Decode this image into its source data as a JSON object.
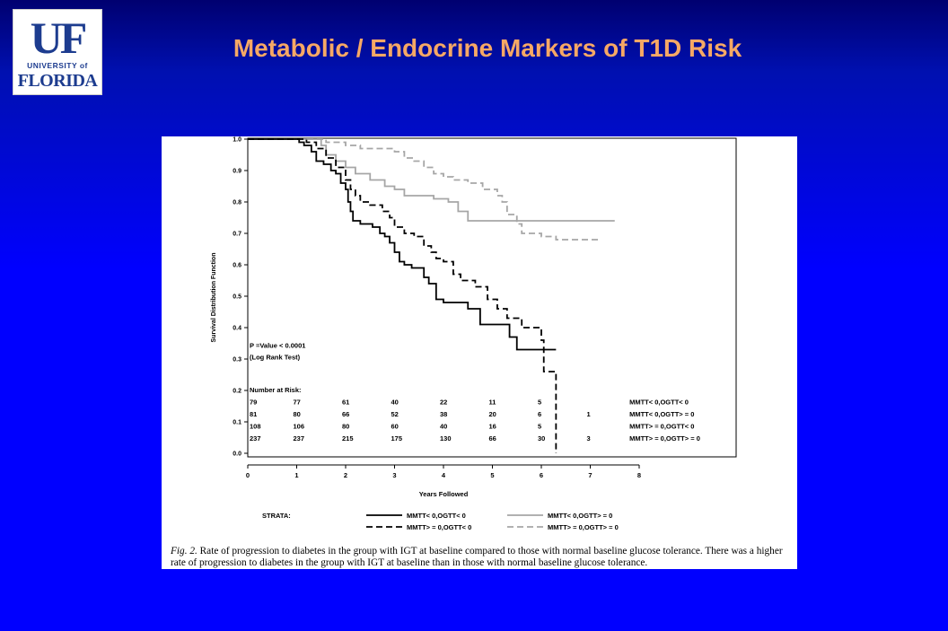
{
  "slide": {
    "title": "Metabolic / Endocrine Markers of T1D Risk",
    "logo": {
      "letters": "UF",
      "line1": "UNIVERSITY of",
      "line2": "FLORIDA"
    }
  },
  "figure": {
    "caption_label": "Fig. 2.",
    "caption_text": "Rate of progression to diabetes in the group with IGT at baseline compared to those with normal baseline glucose tolerance. There was a higher rate of progression to diabetes in the group with IGT at baseline than in those with normal baseline glucose tolerance."
  },
  "chart_data": {
    "type": "line",
    "xlabel": "Years Followed",
    "ylabel": "Survival Distribution Function",
    "xlim": [
      0,
      8
    ],
    "ylim": [
      0.0,
      1.0
    ],
    "x_ticks": [
      "0",
      "1",
      "2",
      "3",
      "4",
      "5",
      "6",
      "7",
      "8"
    ],
    "y_ticks": [
      "0.0",
      "0.1",
      "0.2",
      "0.3",
      "0.4",
      "0.5",
      "0.6",
      "0.7",
      "0.8",
      "0.9",
      "1.0"
    ],
    "annotation": [
      "P =Value < 0.0001",
      "(Log Rank Test)"
    ],
    "risk_table": {
      "header": "Number at Risk:",
      "rows": [
        {
          "values": [
            "79",
            "77",
            "61",
            "40",
            "22",
            "11",
            "5",
            ""
          ],
          "label": "MMTT< 0,OGTT< 0"
        },
        {
          "values": [
            "81",
            "80",
            "66",
            "52",
            "38",
            "20",
            "6",
            "1"
          ],
          "label": "MMTT< 0,OGTT> = 0"
        },
        {
          "values": [
            "108",
            "106",
            "80",
            "60",
            "40",
            "16",
            "5",
            ""
          ],
          "label": "MMTT> = 0,OGTT< 0"
        },
        {
          "values": [
            "237",
            "237",
            "215",
            "175",
            "130",
            "66",
            "30",
            "3"
          ],
          "label": "MMTT> = 0,OGTT> = 0"
        }
      ]
    },
    "legend_title": "STRATA:",
    "series": [
      {
        "name": "MMTT< 0,OGTT< 0",
        "color": "#000000",
        "dash": "solid",
        "x": [
          0,
          1.0,
          1.05,
          1.15,
          1.3,
          1.4,
          1.55,
          1.7,
          1.8,
          1.9,
          2.0,
          2.05,
          2.1,
          2.15,
          2.2,
          2.3,
          2.55,
          2.7,
          2.8,
          2.9,
          3.0,
          3.1,
          3.2,
          3.35,
          3.6,
          3.7,
          3.85,
          4.0,
          4.5,
          4.75,
          5.0,
          5.35,
          5.5,
          6.0,
          6.3
        ],
        "y": [
          1.0,
          1.0,
          0.99,
          0.98,
          0.96,
          0.93,
          0.92,
          0.9,
          0.89,
          0.86,
          0.84,
          0.8,
          0.77,
          0.74,
          0.74,
          0.73,
          0.72,
          0.7,
          0.69,
          0.67,
          0.64,
          0.61,
          0.6,
          0.59,
          0.56,
          0.54,
          0.49,
          0.48,
          0.46,
          0.41,
          0.41,
          0.37,
          0.33,
          0.33,
          0.33
        ]
      },
      {
        "name": "MMTT> = 0,OGTT< 0",
        "color": "#000000",
        "dash": "dashed",
        "x": [
          0,
          1.0,
          1.2,
          1.4,
          1.6,
          1.8,
          2.0,
          2.1,
          2.2,
          2.3,
          2.5,
          2.75,
          2.9,
          3.0,
          3.2,
          3.4,
          3.6,
          3.75,
          3.85,
          4.0,
          4.2,
          4.35,
          4.65,
          4.9,
          5.1,
          5.3,
          5.6,
          6.0,
          6.05,
          6.2,
          6.3
        ],
        "y": [
          1.0,
          1.0,
          0.99,
          0.97,
          0.94,
          0.91,
          0.87,
          0.84,
          0.82,
          0.8,
          0.79,
          0.77,
          0.75,
          0.72,
          0.7,
          0.69,
          0.66,
          0.64,
          0.62,
          0.61,
          0.57,
          0.55,
          0.53,
          0.49,
          0.46,
          0.43,
          0.4,
          0.36,
          0.26,
          0.26,
          0.0
        ]
      },
      {
        "name": "MMTT< 0,OGTT> = 0",
        "color": "#a6a6a6",
        "dash": "solid",
        "x": [
          0,
          1.05,
          1.5,
          1.6,
          1.8,
          2.0,
          2.2,
          2.5,
          2.8,
          3.0,
          3.2,
          3.5,
          3.8,
          4.1,
          4.3,
          4.5,
          6.5,
          7.5
        ],
        "y": [
          1.0,
          1.0,
          0.98,
          0.95,
          0.93,
          0.91,
          0.89,
          0.87,
          0.85,
          0.84,
          0.82,
          0.82,
          0.81,
          0.8,
          0.77,
          0.74,
          0.74,
          0.74
        ]
      },
      {
        "name": "MMTT> = 0,OGTT> = 0",
        "color": "#a6a6a6",
        "dash": "dashed",
        "x": [
          0,
          1.6,
          2.0,
          2.3,
          2.8,
          3.0,
          3.2,
          3.4,
          3.6,
          3.8,
          4.0,
          4.2,
          4.5,
          4.8,
          5.1,
          5.2,
          5.3,
          5.5,
          5.6,
          6.0,
          6.3,
          7.2
        ],
        "y": [
          1.0,
          0.99,
          0.98,
          0.97,
          0.97,
          0.96,
          0.94,
          0.93,
          0.91,
          0.89,
          0.88,
          0.87,
          0.86,
          0.84,
          0.82,
          0.8,
          0.76,
          0.73,
          0.7,
          0.69,
          0.68,
          0.68
        ]
      }
    ]
  }
}
